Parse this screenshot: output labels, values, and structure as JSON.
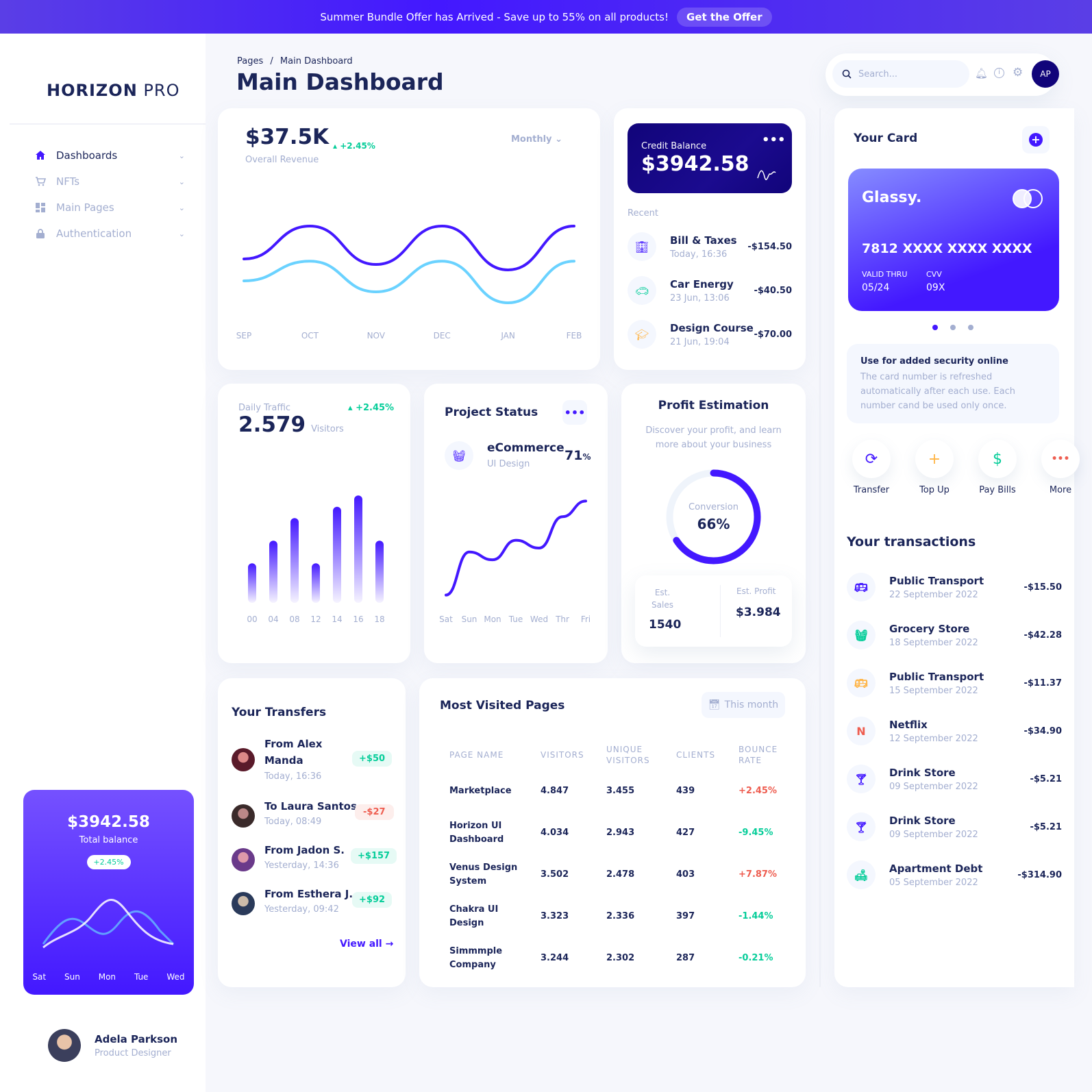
{
  "banner": {
    "text": "Summer Bundle Offer has Arrived - Save up to 55% on all products!",
    "button": "Get the Offer"
  },
  "sidebar": {
    "logo_bold": "HORIZON",
    "logo_light": " PRO",
    "items": [
      {
        "label": "Dashboards",
        "icon": "home-icon"
      },
      {
        "label": "NFTs",
        "icon": "cart-icon"
      },
      {
        "label": "Main Pages",
        "icon": "grid-icon"
      },
      {
        "label": "Authentication",
        "icon": "lock-icon"
      }
    ],
    "promo": {
      "amount": "$3942.58",
      "label": "Total balance",
      "badge": "+2.45%",
      "days": [
        "Sat",
        "Sun",
        "Mon",
        "Tue",
        "Wed"
      ]
    },
    "user": {
      "name": "Adela Parkson",
      "role": "Product Designer"
    }
  },
  "header": {
    "breadcrumb_root": "Pages",
    "breadcrumb_sep": "/",
    "breadcrumb_page": "Main Dashboard",
    "title": "Main Dashboard",
    "search_placeholder": "Search...",
    "avatar_initials": "AP"
  },
  "revenue": {
    "amount": "$37.5K",
    "label": "Overall Revenue",
    "change": "+2.45%",
    "period": "Monthly"
  },
  "credit": {
    "label": "Credit Balance",
    "amount": "$3942.58",
    "recent_label": "Recent",
    "items": [
      {
        "name": "Bill & Taxes",
        "date": "Today, 16:36",
        "amount": "-$154.50",
        "icon": "building-icon"
      },
      {
        "name": "Car Energy",
        "date": "23 Jun, 13:06",
        "amount": "-$40.50",
        "icon": "car-icon"
      },
      {
        "name": "Design Course",
        "date": "21 Jun, 19:04",
        "amount": "-$70.00",
        "icon": "graduation-icon"
      }
    ]
  },
  "traffic": {
    "label": "Daily Traffic",
    "value": "2.579",
    "unit": "Visitors",
    "change": "+2.45%"
  },
  "project": {
    "title": "Project Status",
    "name": "eCommerce",
    "sub": "UI Design",
    "percent": "71",
    "percent_sign": "%"
  },
  "profit": {
    "title": "Profit Estimation",
    "desc": "Discover your profit, and learn more about your business",
    "conv_label": "Conversion",
    "conv_value": "66%",
    "conversion_fraction": 0.66,
    "sales_label": "Est. Sales",
    "sales_value": "1540",
    "profit_label": "Est. Profit",
    "profit_value": "$3.984"
  },
  "transfers": {
    "title": "Your Transfers",
    "view_all": "View all",
    "items": [
      {
        "name": "From Alex Manda",
        "date": "Today, 16:36",
        "amount": "+$50",
        "positive": true
      },
      {
        "name": "To Laura Santos",
        "date": "Today, 08:49",
        "amount": "-$27",
        "positive": false
      },
      {
        "name": "From Jadon S.",
        "date": "Yesterday, 14:36",
        "amount": "+$157",
        "positive": true
      },
      {
        "name": "From Esthera J.",
        "date": "Yesterday, 09:42",
        "amount": "+$92",
        "positive": true
      }
    ]
  },
  "pages_table": {
    "title": "Most Visited Pages",
    "filter": "This month",
    "headers": [
      "PAGE NAME",
      "VISITORS",
      "UNIQUE VISITORS",
      "CLIENTS",
      "BOUNCE RATE"
    ],
    "rows": [
      {
        "name": "Marketplace",
        "visitors": "4.847",
        "unique": "3.455",
        "clients": "439",
        "bounce": "+2.45%",
        "bounce_color": "#ee5d50"
      },
      {
        "name": "Horizon UI Dashboard",
        "visitors": "4.034",
        "unique": "2.943",
        "clients": "427",
        "bounce": "-9.45%",
        "bounce_color": "#05cd99"
      },
      {
        "name": "Venus Design System",
        "visitors": "3.502",
        "unique": "2.478",
        "clients": "403",
        "bounce": "+7.87%",
        "bounce_color": "#ee5d50"
      },
      {
        "name": "Chakra UI Design",
        "visitors": "3.323",
        "unique": "2.336",
        "clients": "397",
        "bounce": "-1.44%",
        "bounce_color": "#05cd99"
      },
      {
        "name": "Simmmple Company",
        "visitors": "3.244",
        "unique": "2.302",
        "clients": "287",
        "bounce": "-0.21%",
        "bounce_color": "#05cd99"
      }
    ]
  },
  "your_card": {
    "title": "Your Card",
    "brand": "Glassy.",
    "number": "7812 XXXX XXXX XXXX",
    "valid_label": "VALID THRU",
    "valid": "05/24",
    "cvv_label": "CVV",
    "cvv": "09X",
    "security_title": "Use for added security online",
    "security_text": "The card number is refreshed automatically after each use. Each number cand be used only once.",
    "actions": [
      {
        "label": "Transfer",
        "icon": "transfer-icon",
        "color": "#4318ff"
      },
      {
        "label": "Top Up",
        "icon": "plus-icon",
        "color": "#ffb547"
      },
      {
        "label": "Pay Bills",
        "icon": "dollar-icon",
        "color": "#05cd99"
      },
      {
        "label": "More",
        "icon": "more-icon",
        "color": "#ee5d50"
      }
    ]
  },
  "transactions": {
    "title": "Your transactions",
    "items": [
      {
        "name": "Public Transport",
        "date": "22 September 2022",
        "amount": "-$15.50",
        "icon": "bus-icon",
        "color": "#4318ff"
      },
      {
        "name": "Grocery Store",
        "date": "18 September 2022",
        "amount": "-$42.28",
        "icon": "basket-icon",
        "color": "#05cd99"
      },
      {
        "name": "Public Transport",
        "date": "15 September 2022",
        "amount": "-$11.37",
        "icon": "bus-icon",
        "color": "#ffb547"
      },
      {
        "name": "Netflix",
        "date": "12 September 2022",
        "amount": "-$34.90",
        "icon": "netflix-icon",
        "color": "#ee5d50"
      },
      {
        "name": "Drink Store",
        "date": "09 September 2022",
        "amount": "-$5.21",
        "icon": "drink-icon",
        "color": "#4318ff"
      },
      {
        "name": "Drink Store",
        "date": "09 September 2022",
        "amount": "-$5.21",
        "icon": "drink-icon",
        "color": "#4318ff"
      },
      {
        "name": "Apartment Debt",
        "date": "05 September 2022",
        "amount": "-$314.90",
        "icon": "sofa-icon",
        "color": "#05cd99"
      }
    ]
  },
  "chart_data": [
    {
      "type": "line",
      "x": [
        "SEP",
        "OCT",
        "NOV",
        "DEC",
        "JAN",
        "FEB"
      ],
      "series": [
        {
          "values": [
            50,
            80,
            45,
            80,
            40,
            80
          ]
        },
        {
          "values": [
            30,
            48,
            20,
            48,
            10,
            48
          ]
        }
      ],
      "colors": [
        "#4318ff",
        "#6ad2ff"
      ]
    },
    {
      "type": "bar",
      "categories": [
        "00",
        "04",
        "08",
        "12",
        "14",
        "16",
        "18"
      ],
      "values": [
        35,
        55,
        75,
        35,
        85,
        95,
        55
      ]
    },
    {
      "type": "line",
      "categories": [
        "Sat",
        "Sun",
        "Mon",
        "Tue",
        "Wed",
        "Thr",
        "Fri"
      ],
      "values": [
        10,
        65,
        55,
        80,
        70,
        110,
        130
      ]
    }
  ]
}
